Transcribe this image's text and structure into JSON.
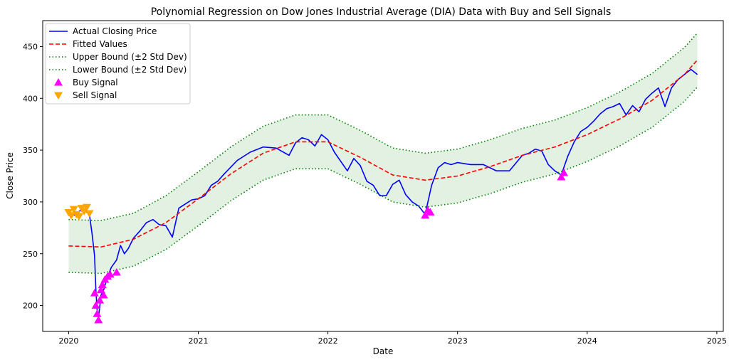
{
  "chart_data": {
    "type": "line",
    "title": "Polynomial Regression on Dow Jones Industrial Average (DIA) Data with Buy and Sell Signals",
    "xlabel": "Date",
    "ylabel": "Close Price",
    "xlim": [
      2019.8,
      2025.05
    ],
    "ylim": [
      175,
      475
    ],
    "x_ticks": [
      2020,
      2021,
      2022,
      2023,
      2024,
      2025
    ],
    "x_tick_labels": [
      "2020",
      "2021",
      "2022",
      "2023",
      "2024",
      "2025"
    ],
    "y_ticks": [
      200,
      250,
      300,
      350,
      400,
      450
    ],
    "y_tick_labels": [
      "200",
      "250",
      "300",
      "350",
      "400",
      "450"
    ],
    "grid": false,
    "legend_position": "upper-left",
    "series": [
      {
        "name": "Actual Closing Price",
        "style": "solid",
        "color": "#0000ff",
        "x": [
          2020.0,
          2020.05,
          2020.1,
          2020.13,
          2020.16,
          2020.18,
          2020.2,
          2020.21,
          2020.22,
          2020.23,
          2020.25,
          2020.27,
          2020.3,
          2020.33,
          2020.37,
          2020.4,
          2020.43,
          2020.46,
          2020.5,
          2020.55,
          2020.6,
          2020.65,
          2020.7,
          2020.75,
          2020.8,
          2020.85,
          2020.9,
          2020.95,
          2021.0,
          2021.05,
          2021.1,
          2021.15,
          2021.2,
          2021.3,
          2021.4,
          2021.5,
          2021.6,
          2021.7,
          2021.75,
          2021.8,
          2021.85,
          2021.9,
          2021.95,
          2022.0,
          2022.05,
          2022.1,
          2022.15,
          2022.2,
          2022.25,
          2022.3,
          2022.35,
          2022.4,
          2022.45,
          2022.5,
          2022.55,
          2022.6,
          2022.65,
          2022.7,
          2022.75,
          2022.8,
          2022.85,
          2022.9,
          2022.95,
          2023.0,
          2023.1,
          2023.2,
          2023.3,
          2023.4,
          2023.5,
          2023.55,
          2023.6,
          2023.65,
          2023.7,
          2023.75,
          2023.8,
          2023.85,
          2023.9,
          2023.95,
          2024.0,
          2024.05,
          2024.1,
          2024.15,
          2024.2,
          2024.25,
          2024.3,
          2024.35,
          2024.4,
          2024.45,
          2024.5,
          2024.55,
          2024.6,
          2024.65,
          2024.7,
          2024.75,
          2024.8,
          2024.85
        ],
        "values": [
          289,
          287,
          293,
          291,
          288,
          270,
          248,
          215,
          195,
          188,
          210,
          215,
          228,
          237,
          244,
          258,
          250,
          255,
          265,
          272,
          280,
          283,
          278,
          277,
          266,
          294,
          298,
          302,
          303,
          306,
          316,
          320,
          327,
          340,
          348,
          353,
          352,
          345,
          357,
          362,
          360,
          354,
          365,
          360,
          348,
          339,
          330,
          342,
          335,
          320,
          316,
          306,
          306,
          317,
          321,
          307,
          300,
          296,
          288,
          316,
          333,
          338,
          336,
          338,
          336,
          336,
          330,
          330,
          345,
          347,
          351,
          349,
          336,
          330,
          326,
          344,
          358,
          368,
          372,
          378,
          385,
          390,
          392,
          395,
          384,
          393,
          387,
          399,
          405,
          410,
          392,
          410,
          418,
          423,
          428,
          423
        ]
      },
      {
        "name": "Fitted Values",
        "style": "dashed",
        "color": "#ff0000",
        "x": [
          2020.0,
          2020.25,
          2020.5,
          2020.75,
          2021.0,
          2021.25,
          2021.5,
          2021.75,
          2022.0,
          2022.25,
          2022.5,
          2022.75,
          2023.0,
          2023.25,
          2023.5,
          2023.75,
          2024.0,
          2024.25,
          2024.5,
          2024.75,
          2024.85
        ],
        "values": [
          257.5,
          256.5,
          264,
          280,
          303,
          327,
          347,
          358,
          358,
          343,
          326,
          321,
          325,
          334,
          345,
          353,
          365,
          380,
          398,
          423,
          437
        ]
      },
      {
        "name": "Upper Bound (±2 Std Dev)",
        "style": "dotted",
        "color": "#008000",
        "x": [
          2020.0,
          2020.25,
          2020.5,
          2020.75,
          2021.0,
          2021.25,
          2021.5,
          2021.75,
          2022.0,
          2022.25,
          2022.5,
          2022.75,
          2023.0,
          2023.25,
          2023.5,
          2023.75,
          2024.0,
          2024.25,
          2024.5,
          2024.75,
          2024.85
        ],
        "values": [
          283,
          282,
          289,
          306,
          329,
          353,
          373,
          384,
          384,
          369,
          352,
          347,
          351,
          360,
          371,
          379,
          391,
          406,
          424,
          449,
          463
        ]
      },
      {
        "name": "Lower Bound (±2 Std Dev)",
        "style": "dotted",
        "color": "#008000",
        "x": [
          2020.0,
          2020.25,
          2020.5,
          2020.75,
          2021.0,
          2021.25,
          2021.5,
          2021.75,
          2022.0,
          2022.25,
          2022.5,
          2022.75,
          2023.0,
          2023.25,
          2023.5,
          2023.75,
          2024.0,
          2024.25,
          2024.5,
          2024.75,
          2024.85
        ],
        "values": [
          232,
          231,
          238,
          254,
          277,
          301,
          321,
          332,
          332,
          317,
          300,
          295,
          299,
          308,
          319,
          327,
          339,
          354,
          372,
          397,
          411
        ]
      }
    ],
    "band_fill_color": "#e3f1e3",
    "buy_signals": {
      "name": "Buy Signal",
      "color": "#ff00ff",
      "marker": "triangle-up",
      "x": [
        2020.2,
        2020.21,
        2020.22,
        2020.23,
        2020.24,
        2020.25,
        2020.26,
        2020.27,
        2020.28,
        2020.3,
        2020.32,
        2020.37,
        2022.75,
        2022.77,
        2022.79,
        2023.8,
        2023.82
      ],
      "values": [
        212,
        200,
        192,
        186,
        205,
        215,
        220,
        210,
        225,
        228,
        230,
        232,
        287,
        292,
        290,
        324,
        328
      ]
    },
    "sell_signals": {
      "name": "Sell Signal",
      "color": "#ffa500",
      "marker": "triangle-down",
      "x": [
        2020.0,
        2020.02,
        2020.04,
        2020.06,
        2020.08,
        2020.1,
        2020.12,
        2020.14,
        2020.16
      ],
      "values": [
        290,
        287,
        293,
        288,
        286,
        294,
        291,
        295,
        289
      ]
    }
  }
}
